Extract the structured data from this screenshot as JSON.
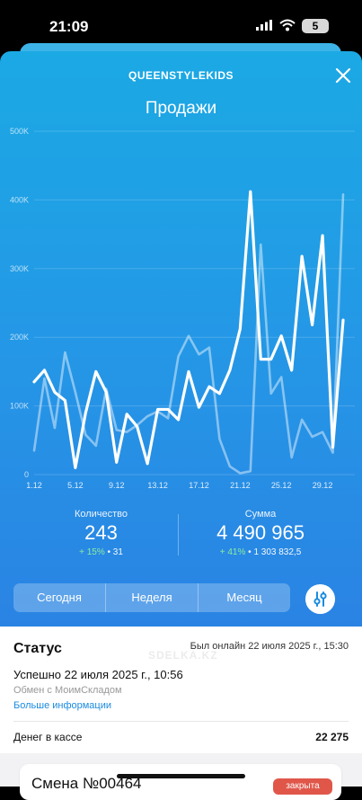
{
  "status_bar": {
    "time": "21:09",
    "battery": "5"
  },
  "header": {
    "store_name": "QUEENSTYLEKIDS",
    "title": "Продажи"
  },
  "chart_data": {
    "type": "line",
    "ylim": [
      0,
      500000
    ],
    "ytick_labels": [
      "0",
      "100K",
      "200K",
      "300K",
      "400K",
      "500K"
    ],
    "ytick_values": [
      0,
      100000,
      200000,
      300000,
      400000,
      500000
    ],
    "x": [
      1,
      2,
      3,
      4,
      5,
      6,
      7,
      8,
      9,
      10,
      11,
      12,
      13,
      14,
      15,
      16,
      17,
      18,
      19,
      20,
      21,
      22,
      23,
      24,
      25,
      26,
      27,
      28,
      29,
      30,
      31
    ],
    "xtick_labels": [
      "1.12",
      "5.12",
      "9.12",
      "13.12",
      "17.12",
      "21.12",
      "25.12",
      "29.12"
    ],
    "xtick_positions": [
      1,
      5,
      9,
      13,
      17,
      21,
      25,
      29
    ],
    "series": [
      {
        "values": [
          135000,
          152000,
          120000,
          108000,
          10000,
          90000,
          150000,
          120000,
          18000,
          88000,
          70000,
          16000,
          95000,
          95000,
          80000,
          150000,
          98000,
          128000,
          118000,
          152000,
          212000,
          412000,
          168000,
          168000,
          202000,
          152000,
          318000,
          218000,
          348000,
          40000,
          225000
        ]
      },
      {
        "values": [
          35000,
          140000,
          68000,
          178000,
          120000,
          58000,
          42000,
          125000,
          65000,
          62000,
          72000,
          85000,
          92000,
          82000,
          172000,
          202000,
          175000,
          185000,
          52000,
          12000,
          2000,
          5000,
          335000,
          118000,
          142000,
          25000,
          80000,
          55000,
          62000,
          32000,
          408000
        ]
      }
    ]
  },
  "stats": {
    "quantity": {
      "label": "Количество",
      "value": "243",
      "change": "+ 15%",
      "prev": "31"
    },
    "sum": {
      "label": "Сумма",
      "value": "4 490 965",
      "change": "+ 41%",
      "prev": "1 303 832,5"
    }
  },
  "periods": [
    "Сегодня",
    "Неделя",
    "Месяц"
  ],
  "status_section": {
    "title": "Статус",
    "online": "Был онлайн 22 июля 2025 г., 15:30",
    "result": "Успешно 22 июля 2025 г., 10:56",
    "exchange": "Обмен с МоимСкладом",
    "more_link": "Больше информации",
    "cash_label": "Денег в кассе",
    "cash_value": "22 275"
  },
  "shift": {
    "title": "Смена №00464",
    "badge": "закрыта"
  },
  "watermark": "SDELKA.KZ",
  "colors": {
    "accent": "#1ba9e4",
    "badge": "#e0574a",
    "link": "#1a8be0"
  }
}
